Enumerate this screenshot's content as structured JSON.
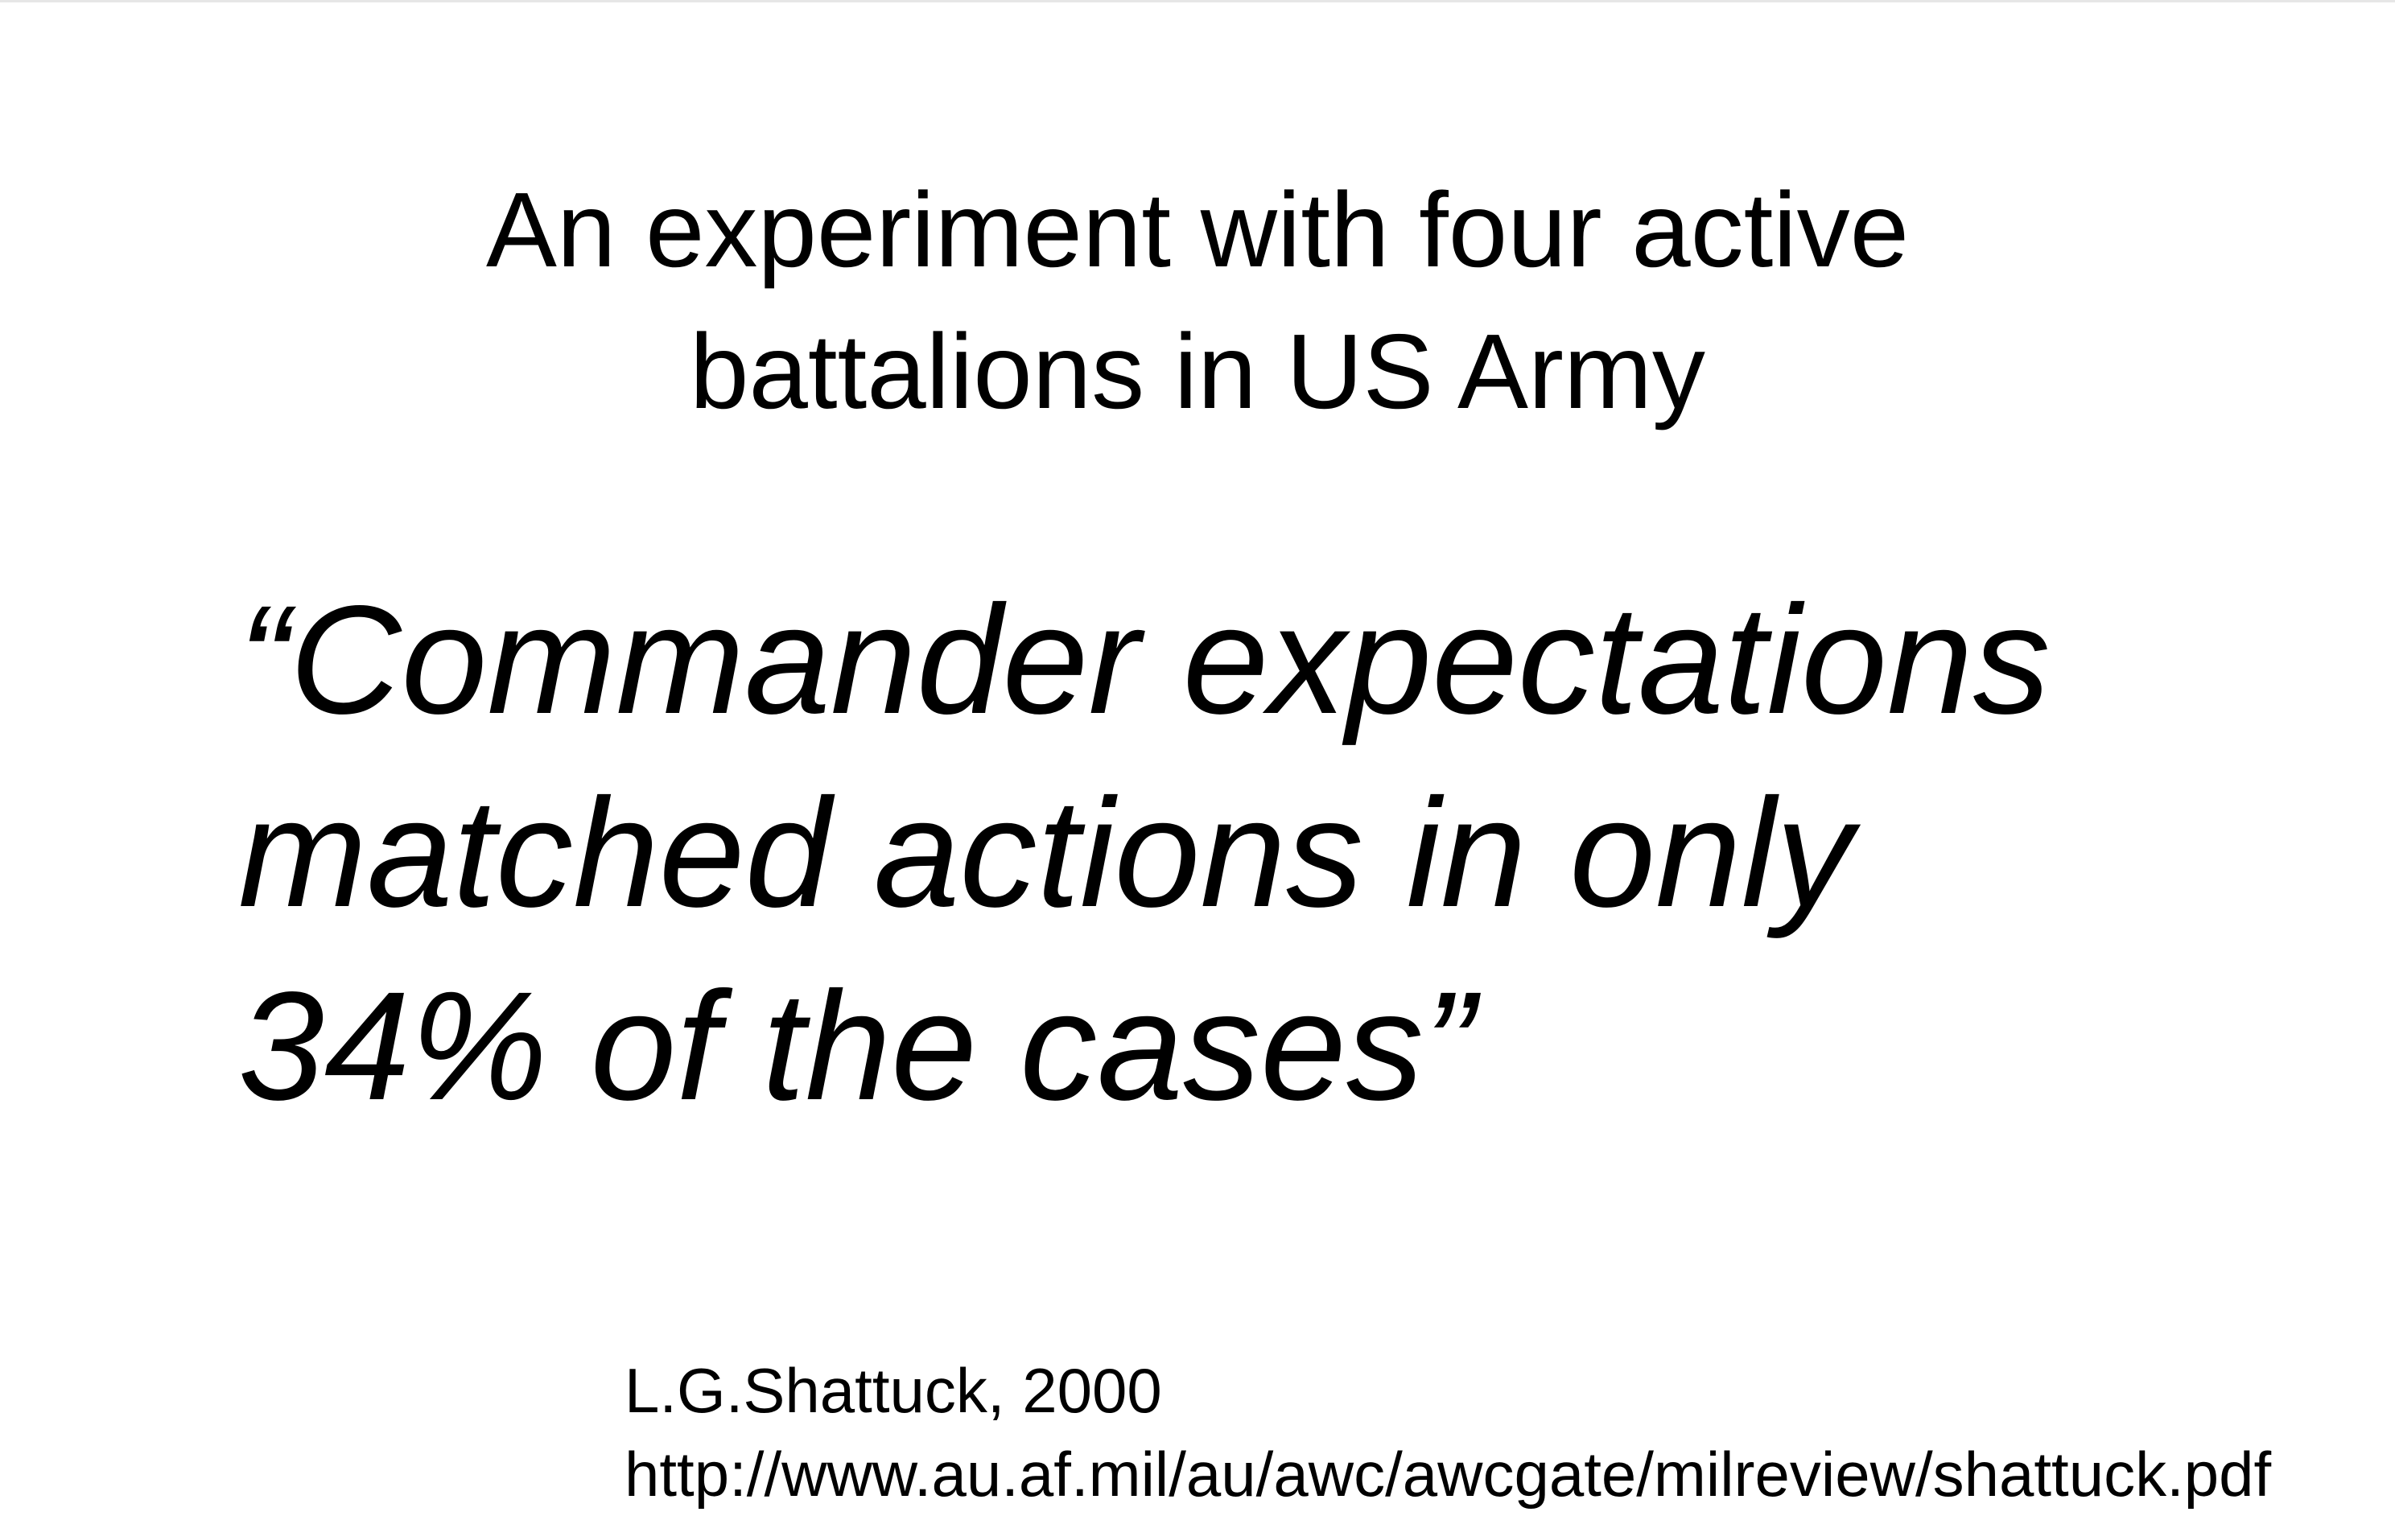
{
  "slide": {
    "title_lines": [
      "An experiment with four active",
      "battalions in US Army"
    ],
    "quote_lines": [
      "“Commander expectations",
      "matched actions in only",
      "34% of the cases”"
    ],
    "citation": {
      "author_year": "L.G.Shattuck, 2000",
      "url": "http://www.au.af.mil/au/awc/awcgate/milreview/shattuck.pdf"
    }
  }
}
